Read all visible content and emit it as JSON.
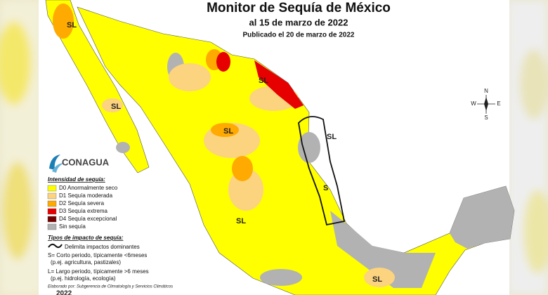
{
  "header": {
    "title": "Monitor de Sequía de México",
    "subtitle": "al 15 de marzo de 2022",
    "published": "Publicado el 20 de marzo de 2022"
  },
  "logo": "CONAGUA",
  "compass": {
    "north": "N",
    "south": "S",
    "east": "E",
    "west": "W"
  },
  "map_labels": [
    "SL",
    "SL",
    "SL",
    "SL",
    "SL",
    "SL",
    "SL",
    "S"
  ],
  "legend": {
    "title": "Intensidad de sequía:",
    "items": [
      {
        "label": "D0 Anormalmente seco",
        "color": "#ffff00"
      },
      {
        "label": "D1 Sequía moderada",
        "color": "#fcd37f"
      },
      {
        "label": "D2 Sequía severa",
        "color": "#ffaa00"
      },
      {
        "label": "D3 Sequía extrema",
        "color": "#e60000"
      },
      {
        "label": "D4 Sequía excepcional",
        "color": "#730000"
      },
      {
        "label": "Sin sequía",
        "color": "#b2b2b2"
      }
    ]
  },
  "impacts": {
    "title": "Tipos de impacto de sequía:",
    "line": "Delimita impactos dominantes",
    "short": "S= Corto periodo, típicamente <6meses",
    "short_example": "(p.ej. agricultura, pastizales)",
    "long": "L= Largo periodo, típicamente >6 meses",
    "long_example": "(p.ej. hidrología, ecología)"
  },
  "credit": "Elaborado por: Subgerencia de Climatología y Servicios Climáticos",
  "year": "2022"
}
